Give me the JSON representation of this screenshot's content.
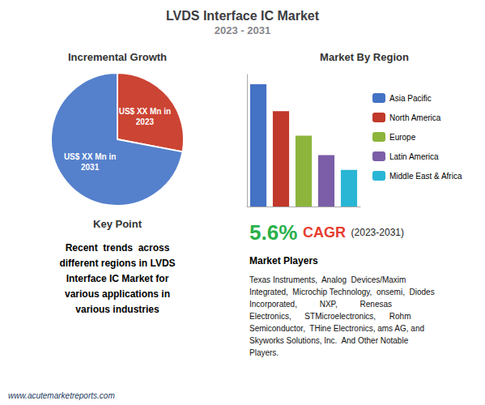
{
  "title": "LVDS Interface IC Market",
  "subtitle": "2023 - 2031",
  "chart_data": [
    {
      "type": "pie",
      "title": "Incremental Growth",
      "categories": [
        "US$ XX Mn in\n2023",
        "US$ XX Mn in\n2031"
      ],
      "values": [
        28,
        72
      ],
      "colors": [
        "#cc4433",
        "#5580cc"
      ]
    },
    {
      "type": "bar",
      "title": "Market By Region",
      "categories": [
        "Asia Pacific",
        "North America",
        "Europe",
        "Latin America",
        "Middle East & Africa"
      ],
      "values": [
        100,
        78,
        58,
        42,
        30
      ],
      "colors": [
        "#4472c4",
        "#c0392b",
        "#8db53c",
        "#7b5ea7",
        "#29b6d4"
      ],
      "ylim": [
        0,
        108
      ],
      "tick_labels": false,
      "grid": false,
      "legend": "right"
    }
  ],
  "annotations": [
    {
      "title": "Key Point",
      "text": "Recent  trends  across\ndifferent regions in LVDS\nInterface IC Market for\nvarious applications in\nvarious industries"
    },
    {
      "text": "5.6%",
      "color": "#2ab04a"
    },
    {
      "text": "CAGR",
      "color": "#e63c2f"
    },
    {
      "text": "(2023-2031)",
      "color": "#222222"
    },
    {
      "title": "Market Players",
      "text": "Texas Instruments,  Analog  Devices/Maxim\nIntegrated,  Microchip Technology,  onsemi,  Diodes\nIncorporated,          NXP,          Renesas\nElectronics,      STMicroelectronics,      Rohm\nSemiconductor,  THine Electronics, ams AG, and\nSkyworks Solutions, Inc.  And Other Notable\nPlayers."
    },
    {
      "text": "www.acutemarketreports.com",
      "color": "#1b3a5e"
    }
  ]
}
